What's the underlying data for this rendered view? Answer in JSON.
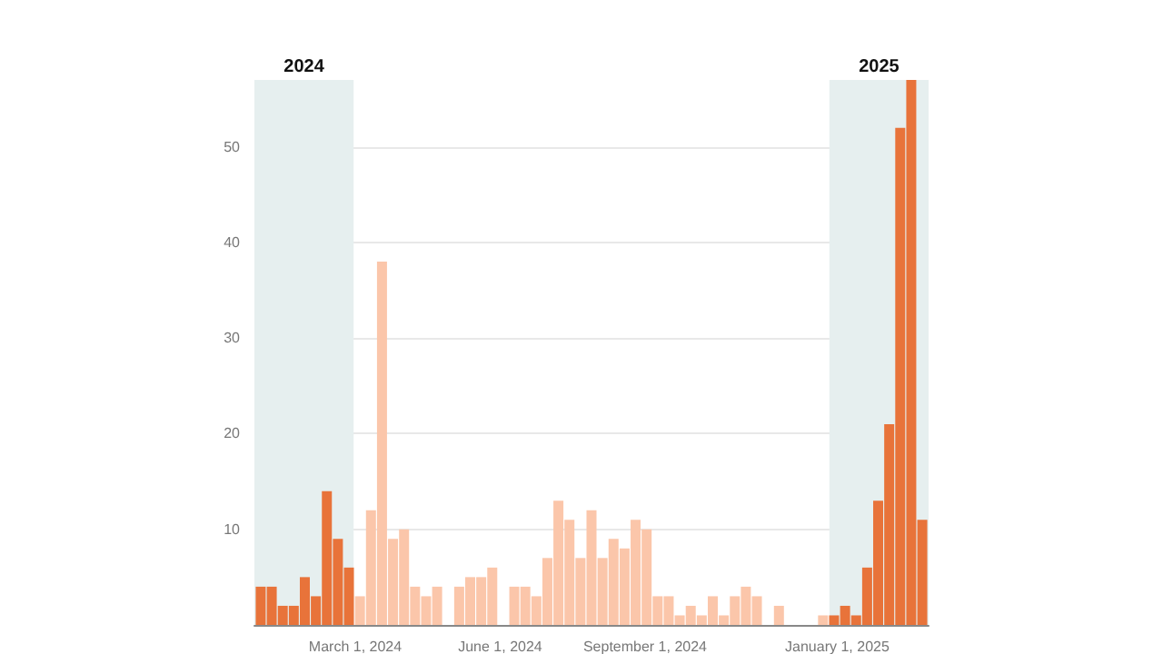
{
  "chart_data": {
    "type": "bar",
    "x": [
      "2024-01-01",
      "2024-01-08",
      "2024-01-15",
      "2024-01-22",
      "2024-01-29",
      "2024-02-05",
      "2024-02-12",
      "2024-02-19",
      "2024-02-26",
      "2024-03-04",
      "2024-03-11",
      "2024-03-18",
      "2024-03-25",
      "2024-04-01",
      "2024-04-08",
      "2024-04-15",
      "2024-04-22",
      "2024-04-29",
      "2024-05-06",
      "2024-05-13",
      "2024-05-20",
      "2024-05-27",
      "2024-06-03",
      "2024-06-10",
      "2024-06-17",
      "2024-06-24",
      "2024-07-01",
      "2024-07-08",
      "2024-07-15",
      "2024-07-22",
      "2024-07-29",
      "2024-08-05",
      "2024-08-12",
      "2024-08-19",
      "2024-08-26",
      "2024-09-02",
      "2024-09-09",
      "2024-09-16",
      "2024-09-23",
      "2024-09-30",
      "2024-10-07",
      "2024-10-14",
      "2024-10-21",
      "2024-10-28",
      "2024-11-04",
      "2024-11-11",
      "2024-11-18",
      "2024-11-25",
      "2024-12-02",
      "2024-12-09",
      "2024-12-16",
      "2024-12-23",
      "2024-12-30",
      "2025-01-06",
      "2025-01-13",
      "2025-01-20",
      "2025-01-27",
      "2025-02-03",
      "2025-02-10",
      "2025-02-17",
      "2025-02-24"
    ],
    "values": [
      4,
      4,
      2,
      2,
      5,
      3,
      14,
      9,
      6,
      3,
      12,
      38,
      9,
      10,
      4,
      3,
      4,
      null,
      4,
      5,
      5,
      6,
      null,
      4,
      4,
      3,
      7,
      13,
      11,
      7,
      12,
      7,
      9,
      8,
      11,
      10,
      3,
      3,
      1,
      2,
      1,
      3,
      1,
      3,
      4,
      3,
      null,
      2,
      null,
      null,
      null,
      1,
      1,
      2,
      1,
      6,
      13,
      21,
      52,
      57,
      11
    ],
    "colors": [
      "#e8733a",
      "#e8733a",
      "#e8733a",
      "#e8733a",
      "#e8733a",
      "#e8733a",
      "#e8733a",
      "#e8733a",
      "#e8733a",
      "#fbc6aa",
      "#fbc6aa",
      "#fbc6aa",
      "#fbc6aa",
      "#fbc6aa",
      "#fbc6aa",
      "#fbc6aa",
      "#fbc6aa",
      "#fbc6aa",
      "#fbc6aa",
      "#fbc6aa",
      "#fbc6aa",
      "#fbc6aa",
      "#fbc6aa",
      "#fbc6aa",
      "#fbc6aa",
      "#fbc6aa",
      "#fbc6aa",
      "#fbc6aa",
      "#fbc6aa",
      "#fbc6aa",
      "#fbc6aa",
      "#fbc6aa",
      "#fbc6aa",
      "#fbc6aa",
      "#fbc6aa",
      "#fbc6aa",
      "#fbc6aa",
      "#fbc6aa",
      "#fbc6aa",
      "#fbc6aa",
      "#fbc6aa",
      "#fbc6aa",
      "#fbc6aa",
      "#fbc6aa",
      "#fbc6aa",
      "#fbc6aa",
      "#fbc6aa",
      "#fbc6aa",
      "#fbc6aa",
      "#fbc6aa",
      "#fbc6aa",
      "#fbc6aa",
      "#e8733a",
      "#e8733a",
      "#e8733a",
      "#e8733a",
      "#e8733a",
      "#e8733a",
      "#e8733a",
      "#e8733a",
      "#e8733a"
    ],
    "xlim": [
      "2023-12-28",
      "2025-02-28"
    ],
    "xticks": [
      {
        "value": "2024-03-01",
        "label": "March 1, 2024"
      },
      {
        "value": "2024-06-01",
        "label": "June 1, 2024"
      },
      {
        "value": "2024-09-01",
        "label": "September 1, 2024"
      },
      {
        "value": "2025-01-01",
        "label": "January 1, 2025"
      }
    ],
    "ylim": [
      0,
      57
    ],
    "yticks": [
      {
        "value": 0,
        "label": null
      },
      10,
      20,
      30,
      40,
      50
    ],
    "grid": "y",
    "bands": [
      {
        "axis": "x",
        "from": "2023-12-28",
        "to": "2024-02-29",
        "label": "2024",
        "color": "#e6efef"
      },
      {
        "axis": "x",
        "from": "2024-12-27",
        "to": "2025-02-28",
        "label": "2025",
        "color": "#e6efef"
      }
    ]
  }
}
